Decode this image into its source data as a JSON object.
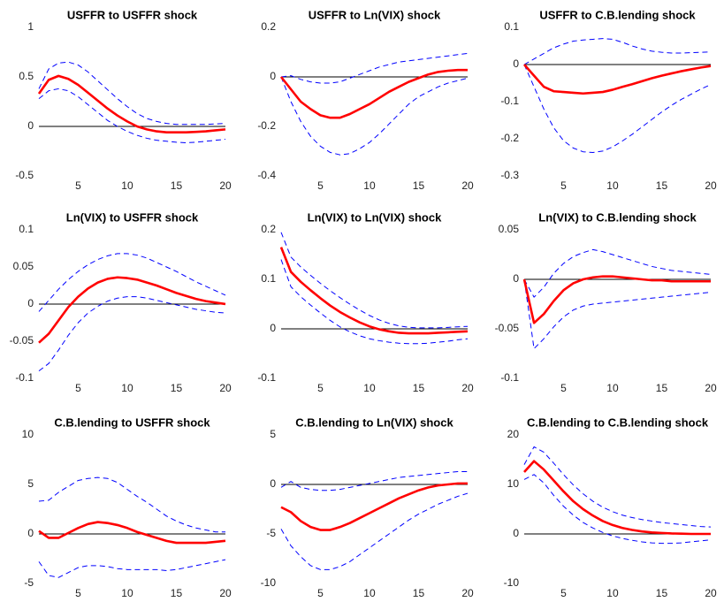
{
  "chart_data": [
    {
      "type": "line",
      "title": "USFFR to USFFR shock",
      "x": [
        1,
        2,
        3,
        4,
        5,
        6,
        7,
        8,
        9,
        10,
        11,
        12,
        13,
        14,
        15,
        16,
        17,
        18,
        19,
        20
      ],
      "xlim": [
        1,
        20
      ],
      "xticks": [
        5,
        10,
        15,
        20
      ],
      "ylim": [
        -0.5,
        1
      ],
      "yticks": [
        -0.5,
        0,
        0.5,
        1
      ],
      "refline": 0,
      "series": [
        {
          "color": "#ff0000",
          "style": "solid",
          "values": [
            0.33,
            0.47,
            0.51,
            0.48,
            0.42,
            0.34,
            0.26,
            0.18,
            0.11,
            0.05,
            0.0,
            -0.03,
            -0.05,
            -0.06,
            -0.06,
            -0.06,
            -0.055,
            -0.05,
            -0.04,
            -0.03
          ]
        },
        {
          "color": "#0000ff",
          "style": "dashed",
          "values": [
            0.38,
            0.58,
            0.64,
            0.65,
            0.62,
            0.55,
            0.46,
            0.37,
            0.28,
            0.2,
            0.13,
            0.08,
            0.05,
            0.03,
            0.02,
            0.02,
            0.02,
            0.02,
            0.025,
            0.03
          ]
        },
        {
          "color": "#0000ff",
          "style": "dashed",
          "values": [
            0.28,
            0.36,
            0.38,
            0.36,
            0.3,
            0.22,
            0.14,
            0.06,
            0.0,
            -0.05,
            -0.09,
            -0.12,
            -0.14,
            -0.15,
            -0.16,
            -0.165,
            -0.16,
            -0.15,
            -0.14,
            -0.13
          ]
        }
      ]
    },
    {
      "type": "line",
      "title": "USFFR to Ln(VIX) shock",
      "x": [
        1,
        2,
        3,
        4,
        5,
        6,
        7,
        8,
        9,
        10,
        11,
        12,
        13,
        14,
        15,
        16,
        17,
        18,
        19,
        20
      ],
      "xlim": [
        1,
        20
      ],
      "xticks": [
        5,
        10,
        15,
        20
      ],
      "ylim": [
        -0.4,
        0.2
      ],
      "yticks": [
        -0.4,
        -0.2,
        0,
        0.2
      ],
      "refline": 0,
      "series": [
        {
          "color": "#ff0000",
          "style": "solid",
          "values": [
            0,
            -0.05,
            -0.1,
            -0.13,
            -0.155,
            -0.165,
            -0.165,
            -0.15,
            -0.13,
            -0.11,
            -0.085,
            -0.06,
            -0.04,
            -0.02,
            -0.005,
            0.01,
            0.02,
            0.025,
            0.028,
            0.028
          ]
        },
        {
          "color": "#0000ff",
          "style": "dashed",
          "values": [
            0,
            0.005,
            -0.01,
            -0.02,
            -0.025,
            -0.025,
            -0.02,
            -0.005,
            0.01,
            0.025,
            0.04,
            0.05,
            0.06,
            0.065,
            0.07,
            0.075,
            0.08,
            0.085,
            0.09,
            0.095
          ]
        },
        {
          "color": "#0000ff",
          "style": "dashed",
          "values": [
            0,
            -0.1,
            -0.18,
            -0.24,
            -0.28,
            -0.305,
            -0.315,
            -0.31,
            -0.29,
            -0.265,
            -0.23,
            -0.19,
            -0.15,
            -0.11,
            -0.08,
            -0.06,
            -0.04,
            -0.025,
            -0.015,
            -0.005
          ]
        }
      ]
    },
    {
      "type": "line",
      "title": "USFFR to C.B.lending shock",
      "x": [
        1,
        2,
        3,
        4,
        5,
        6,
        7,
        8,
        9,
        10,
        11,
        12,
        13,
        14,
        15,
        16,
        17,
        18,
        19,
        20
      ],
      "xlim": [
        1,
        20
      ],
      "xticks": [
        5,
        10,
        15,
        20
      ],
      "ylim": [
        -0.3,
        0.1
      ],
      "yticks": [
        -0.3,
        -0.2,
        -0.1,
        0,
        0.1
      ],
      "refline": 0,
      "series": [
        {
          "color": "#ff0000",
          "style": "solid",
          "values": [
            0,
            -0.03,
            -0.06,
            -0.072,
            -0.074,
            -0.076,
            -0.078,
            -0.076,
            -0.074,
            -0.068,
            -0.06,
            -0.053,
            -0.045,
            -0.037,
            -0.03,
            -0.024,
            -0.018,
            -0.013,
            -0.008,
            -0.004
          ]
        },
        {
          "color": "#0000ff",
          "style": "dashed",
          "values": [
            0,
            0.015,
            0.03,
            0.045,
            0.055,
            0.063,
            0.066,
            0.068,
            0.07,
            0.068,
            0.06,
            0.05,
            0.042,
            0.036,
            0.033,
            0.031,
            0.031,
            0.032,
            0.033,
            0.034
          ]
        },
        {
          "color": "#0000ff",
          "style": "dashed",
          "values": [
            0,
            -0.06,
            -0.12,
            -0.17,
            -0.205,
            -0.225,
            -0.235,
            -0.237,
            -0.233,
            -0.222,
            -0.206,
            -0.188,
            -0.168,
            -0.148,
            -0.128,
            -0.11,
            -0.094,
            -0.08,
            -0.066,
            -0.054
          ]
        }
      ]
    },
    {
      "type": "line",
      "title": "Ln(VIX) to USFFR shock",
      "x": [
        1,
        2,
        3,
        4,
        5,
        6,
        7,
        8,
        9,
        10,
        11,
        12,
        13,
        14,
        15,
        16,
        17,
        18,
        19,
        20
      ],
      "xlim": [
        1,
        20
      ],
      "xticks": [
        5,
        10,
        15,
        20
      ],
      "ylim": [
        -0.1,
        0.1
      ],
      "yticks": [
        -0.1,
        -0.05,
        0,
        0.05,
        0.1
      ],
      "refline": 0,
      "series": [
        {
          "color": "#ff0000",
          "style": "solid",
          "values": [
            -0.052,
            -0.04,
            -0.022,
            -0.004,
            0.01,
            0.021,
            0.029,
            0.034,
            0.036,
            0.035,
            0.033,
            0.029,
            0.025,
            0.02,
            0.015,
            0.011,
            0.007,
            0.004,
            0.002,
            0.0
          ]
        },
        {
          "color": "#0000ff",
          "style": "dashed",
          "values": [
            -0.01,
            0.005,
            0.02,
            0.033,
            0.044,
            0.053,
            0.06,
            0.065,
            0.068,
            0.068,
            0.066,
            0.062,
            0.056,
            0.05,
            0.044,
            0.037,
            0.03,
            0.024,
            0.018,
            0.012
          ]
        },
        {
          "color": "#0000ff",
          "style": "dashed",
          "values": [
            -0.09,
            -0.08,
            -0.062,
            -0.042,
            -0.025,
            -0.012,
            -0.003,
            0.004,
            0.008,
            0.01,
            0.01,
            0.008,
            0.005,
            0.002,
            -0.001,
            -0.004,
            -0.007,
            -0.009,
            -0.011,
            -0.012
          ]
        }
      ]
    },
    {
      "type": "line",
      "title": "Ln(VIX) to Ln(VIX) shock",
      "x": [
        1,
        2,
        3,
        4,
        5,
        6,
        7,
        8,
        9,
        10,
        11,
        12,
        13,
        14,
        15,
        16,
        17,
        18,
        19,
        20
      ],
      "xlim": [
        1,
        20
      ],
      "xticks": [
        5,
        10,
        15,
        20
      ],
      "ylim": [
        -0.1,
        0.2
      ],
      "yticks": [
        -0.1,
        0,
        0.1,
        0.2
      ],
      "refline": 0,
      "series": [
        {
          "color": "#ff0000",
          "style": "solid",
          "values": [
            0.165,
            0.115,
            0.095,
            0.078,
            0.062,
            0.047,
            0.034,
            0.023,
            0.013,
            0.005,
            -0.001,
            -0.005,
            -0.008,
            -0.009,
            -0.009,
            -0.009,
            -0.008,
            -0.007,
            -0.006,
            -0.005
          ]
        },
        {
          "color": "#0000ff",
          "style": "dashed",
          "values": [
            0.195,
            0.145,
            0.125,
            0.108,
            0.092,
            0.077,
            0.063,
            0.05,
            0.038,
            0.027,
            0.018,
            0.011,
            0.006,
            0.003,
            0.002,
            0.002,
            0.002,
            0.003,
            0.004,
            0.005
          ]
        },
        {
          "color": "#0000ff",
          "style": "dashed",
          "values": [
            0.14,
            0.085,
            0.065,
            0.048,
            0.032,
            0.017,
            0.004,
            -0.006,
            -0.014,
            -0.02,
            -0.024,
            -0.027,
            -0.029,
            -0.03,
            -0.03,
            -0.029,
            -0.027,
            -0.025,
            -0.022,
            -0.02
          ]
        }
      ]
    },
    {
      "type": "line",
      "title": "Ln(VIX) to C.B.lending shock",
      "x": [
        1,
        2,
        3,
        4,
        5,
        6,
        7,
        8,
        9,
        10,
        11,
        12,
        13,
        14,
        15,
        16,
        17,
        18,
        19,
        20
      ],
      "xlim": [
        1,
        20
      ],
      "xticks": [
        5,
        10,
        15,
        20
      ],
      "ylim": [
        -0.1,
        0.05
      ],
      "yticks": [
        -0.1,
        -0.05,
        0,
        0.05
      ],
      "refline": 0,
      "series": [
        {
          "color": "#ff0000",
          "style": "solid",
          "values": [
            0,
            -0.044,
            -0.035,
            -0.022,
            -0.011,
            -0.004,
            0.0,
            0.002,
            0.003,
            0.003,
            0.002,
            0.001,
            0.0,
            -0.001,
            -0.001,
            -0.002,
            -0.002,
            -0.002,
            -0.002,
            -0.002
          ]
        },
        {
          "color": "#0000ff",
          "style": "dashed",
          "values": [
            0,
            -0.018,
            -0.008,
            0.006,
            0.016,
            0.023,
            0.027,
            0.03,
            0.028,
            0.025,
            0.022,
            0.019,
            0.016,
            0.013,
            0.011,
            0.009,
            0.008,
            0.007,
            0.006,
            0.005
          ]
        },
        {
          "color": "#0000ff",
          "style": "dashed",
          "values": [
            0,
            -0.07,
            -0.06,
            -0.048,
            -0.038,
            -0.031,
            -0.027,
            -0.025,
            -0.024,
            -0.023,
            -0.022,
            -0.021,
            -0.02,
            -0.019,
            -0.018,
            -0.017,
            -0.016,
            -0.015,
            -0.014,
            -0.013
          ]
        }
      ]
    },
    {
      "type": "line",
      "title": "C.B.lending to USFFR shock",
      "x": [
        1,
        2,
        3,
        4,
        5,
        6,
        7,
        8,
        9,
        10,
        11,
        12,
        13,
        14,
        15,
        16,
        17,
        18,
        19,
        20
      ],
      "xlim": [
        1,
        20
      ],
      "xticks": [
        5,
        10,
        15,
        20
      ],
      "ylim": [
        -5,
        10
      ],
      "yticks": [
        -5,
        0,
        5,
        10
      ],
      "refline": 0,
      "series": [
        {
          "color": "#ff0000",
          "style": "solid",
          "values": [
            0.3,
            -0.4,
            -0.4,
            0.1,
            0.6,
            1.0,
            1.2,
            1.1,
            0.9,
            0.6,
            0.2,
            -0.1,
            -0.4,
            -0.7,
            -0.9,
            -0.9,
            -0.9,
            -0.9,
            -0.8,
            -0.7
          ]
        },
        {
          "color": "#0000ff",
          "style": "dashed",
          "values": [
            3.3,
            3.4,
            4.2,
            4.8,
            5.4,
            5.6,
            5.7,
            5.6,
            5.2,
            4.5,
            3.8,
            3.2,
            2.5,
            1.8,
            1.3,
            0.9,
            0.6,
            0.4,
            0.2,
            0.2
          ]
        },
        {
          "color": "#0000ff",
          "style": "dashed",
          "values": [
            -2.8,
            -4.2,
            -4.4,
            -3.9,
            -3.4,
            -3.2,
            -3.2,
            -3.3,
            -3.5,
            -3.6,
            -3.6,
            -3.6,
            -3.6,
            -3.7,
            -3.6,
            -3.4,
            -3.2,
            -3.0,
            -2.8,
            -2.6
          ]
        }
      ]
    },
    {
      "type": "line",
      "title": "C.B.lending to Ln(VIX) shock",
      "x": [
        1,
        2,
        3,
        4,
        5,
        6,
        7,
        8,
        9,
        10,
        11,
        12,
        13,
        14,
        15,
        16,
        17,
        18,
        19,
        20
      ],
      "xlim": [
        1,
        20
      ],
      "xticks": [
        5,
        10,
        15,
        20
      ],
      "ylim": [
        -10,
        5
      ],
      "yticks": [
        -10,
        -5,
        0,
        5
      ],
      "refline": 0,
      "series": [
        {
          "color": "#ff0000",
          "style": "solid",
          "values": [
            -2.3,
            -2.8,
            -3.7,
            -4.3,
            -4.6,
            -4.6,
            -4.3,
            -3.9,
            -3.4,
            -2.9,
            -2.4,
            -1.9,
            -1.4,
            -1.0,
            -0.6,
            -0.3,
            -0.1,
            0.0,
            0.1,
            0.1
          ]
        },
        {
          "color": "#0000ff",
          "style": "dashed",
          "values": [
            -0.3,
            0.3,
            -0.3,
            -0.5,
            -0.6,
            -0.6,
            -0.5,
            -0.3,
            -0.1,
            0.1,
            0.3,
            0.5,
            0.7,
            0.8,
            0.9,
            1.0,
            1.1,
            1.2,
            1.3,
            1.3
          ]
        },
        {
          "color": "#0000ff",
          "style": "dashed",
          "values": [
            -4.5,
            -6.2,
            -7.3,
            -8.2,
            -8.6,
            -8.6,
            -8.3,
            -7.8,
            -7.1,
            -6.4,
            -5.7,
            -5.0,
            -4.3,
            -3.6,
            -3.0,
            -2.5,
            -2.0,
            -1.6,
            -1.2,
            -0.9
          ]
        }
      ]
    },
    {
      "type": "line",
      "title": "C.B.lending to C.B.lending shock",
      "x": [
        1,
        2,
        3,
        4,
        5,
        6,
        7,
        8,
        9,
        10,
        11,
        12,
        13,
        14,
        15,
        16,
        17,
        18,
        19,
        20
      ],
      "xlim": [
        1,
        20
      ],
      "xticks": [
        5,
        10,
        15,
        20
      ],
      "ylim": [
        -10,
        20
      ],
      "yticks": [
        -10,
        0,
        10,
        20
      ],
      "refline": 0,
      "series": [
        {
          "color": "#ff0000",
          "style": "solid",
          "values": [
            12.5,
            14.7,
            13,
            10.8,
            8.6,
            6.6,
            5,
            3.7,
            2.6,
            1.8,
            1.2,
            0.8,
            0.5,
            0.3,
            0.2,
            0.1,
            0.05,
            0,
            0,
            0
          ]
        },
        {
          "color": "#0000ff",
          "style": "dashed",
          "values": [
            14,
            17.6,
            16.5,
            14.3,
            12,
            9.9,
            8.1,
            6.6,
            5.4,
            4.5,
            3.8,
            3.3,
            2.9,
            2.6,
            2.3,
            2.1,
            1.9,
            1.7,
            1.5,
            1.4
          ]
        },
        {
          "color": "#0000ff",
          "style": "dashed",
          "values": [
            11,
            12,
            10.3,
            7.8,
            5.6,
            3.8,
            2.3,
            1.2,
            0.3,
            -0.4,
            -0.9,
            -1.3,
            -1.6,
            -1.8,
            -1.9,
            -1.9,
            -1.8,
            -1.6,
            -1.4,
            -1.2
          ]
        }
      ]
    }
  ]
}
